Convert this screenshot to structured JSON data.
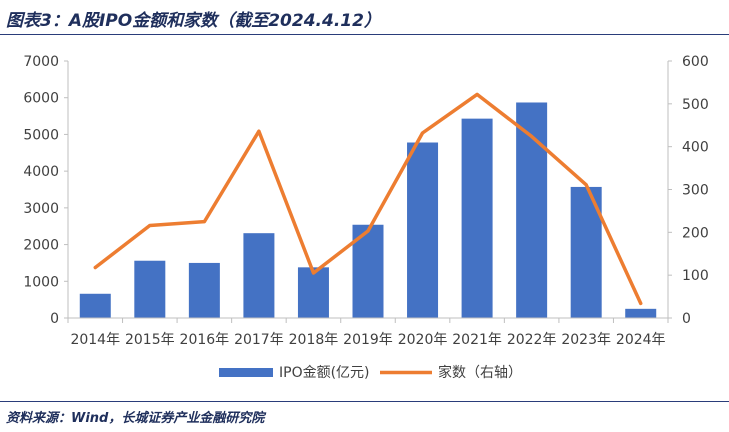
{
  "header": {
    "title": "图表3：A股IPO金额和家数（截至2024.4.12）"
  },
  "footer": {
    "source": "资料来源：Wind，长城证券产业金融研究院"
  },
  "colors": {
    "bar": "#4472c4",
    "line": "#ed7d31",
    "rule": "#2a3d7a"
  },
  "chart_data": {
    "type": "bar",
    "categories": [
      "2014年",
      "2015年",
      "2016年",
      "2017年",
      "2018年",
      "2019年",
      "2020年",
      "2021年",
      "2022年",
      "2023年",
      "2024年"
    ],
    "series": [
      {
        "name": "IPO金额(亿元)",
        "type": "bar",
        "axis": "left",
        "values": [
          660,
          1560,
          1500,
          2310,
          1380,
          2540,
          4780,
          5430,
          5870,
          3570,
          250
        ]
      },
      {
        "name": "家数（右轴）",
        "type": "line",
        "axis": "right",
        "values": [
          118,
          216,
          225,
          436,
          105,
          203,
          432,
          522,
          424,
          311,
          34
        ]
      }
    ],
    "y_left": {
      "min": 0,
      "max": 7000,
      "ticks": [
        "0",
        "1000",
        "2000",
        "3000",
        "4000",
        "5000",
        "6000",
        "7000"
      ]
    },
    "y_right": {
      "min": 0,
      "max": 600,
      "ticks": [
        "0",
        "100",
        "200",
        "300",
        "400",
        "500",
        "600"
      ]
    },
    "grid": false,
    "legend_position": "bottom"
  }
}
